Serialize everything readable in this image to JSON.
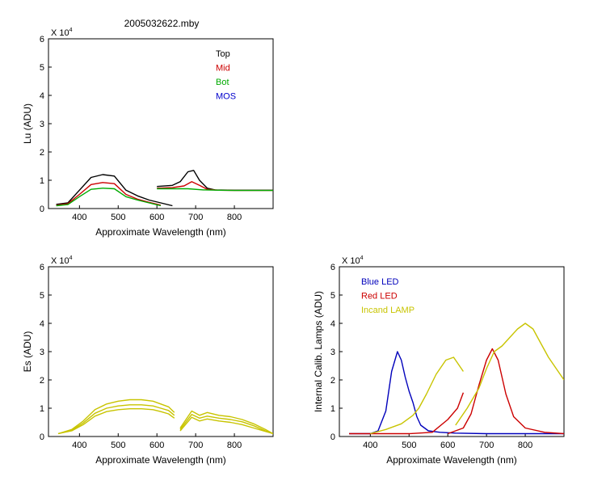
{
  "figure": {
    "title": "2005032622.mby"
  },
  "chart_data": [
    {
      "type": "line",
      "title": "",
      "xlabel": "Approximate Wavelength (nm)",
      "ylabel": "Lu (ADU)",
      "multiplier_label": "X 10",
      "multiplier_exp": "4",
      "xlim": [
        320,
        900
      ],
      "ylim": [
        0,
        6
      ],
      "xticks": [
        400,
        500,
        600,
        700,
        800
      ],
      "yticks": [
        0,
        1,
        2,
        3,
        4,
        5,
        6
      ],
      "legend": {
        "placement": "top-right",
        "entries": [
          "Top",
          "Mid",
          "Bot",
          "MOS"
        ]
      },
      "colors": {
        "Top": "#000000",
        "Mid": "#cc0000",
        "Bot": "#00aa00",
        "MOS": "#0000cc",
        "Mid_faint": "#d89090"
      },
      "series": [
        {
          "name": "Top",
          "segment": "short",
          "x": [
            340,
            370,
            400,
            430,
            460,
            490,
            520,
            550,
            580,
            610,
            640
          ],
          "y": [
            0.15,
            0.2,
            0.65,
            1.1,
            1.2,
            1.15,
            0.65,
            0.45,
            0.3,
            0.2,
            0.1
          ]
        },
        {
          "name": "Top",
          "segment": "long",
          "x": [
            600,
            640,
            660,
            680,
            695,
            710,
            730,
            750,
            800,
            900
          ],
          "y": [
            0.78,
            0.82,
            0.95,
            1.3,
            1.35,
            1.0,
            0.72,
            0.66,
            0.65,
            0.65
          ]
        },
        {
          "name": "Mid",
          "segment": "short",
          "x": [
            340,
            370,
            400,
            430,
            460,
            490,
            520,
            550,
            580,
            610
          ],
          "y": [
            0.12,
            0.17,
            0.5,
            0.85,
            0.92,
            0.88,
            0.5,
            0.33,
            0.22,
            0.12
          ]
        },
        {
          "name": "Mid",
          "segment": "long",
          "x": [
            600,
            640,
            670,
            690,
            710,
            730,
            760,
            800,
            900
          ],
          "y": [
            0.72,
            0.74,
            0.8,
            0.95,
            0.82,
            0.68,
            0.65,
            0.64,
            0.64
          ]
        },
        {
          "name": "Bot",
          "segment": "short",
          "x": [
            340,
            370,
            400,
            430,
            460,
            490,
            520,
            550,
            580,
            610
          ],
          "y": [
            0.1,
            0.14,
            0.42,
            0.68,
            0.72,
            0.7,
            0.42,
            0.3,
            0.2,
            0.1
          ]
        },
        {
          "name": "Bot",
          "segment": "long",
          "x": [
            600,
            640,
            680,
            720,
            760,
            800,
            900
          ],
          "y": [
            0.7,
            0.7,
            0.7,
            0.66,
            0.65,
            0.64,
            0.64
          ]
        }
      ]
    },
    {
      "type": "line",
      "title": "",
      "xlabel": "Approximate Wavelength (nm)",
      "ylabel": "Es (ADU)",
      "multiplier_label": "X 10",
      "multiplier_exp": "4",
      "xlim": [
        320,
        900
      ],
      "ylim": [
        0,
        6
      ],
      "xticks": [
        400,
        500,
        600,
        700,
        800
      ],
      "yticks": [
        0,
        1,
        2,
        3,
        4,
        5,
        6
      ],
      "colors": {
        "line": "#c8c400"
      },
      "series": [
        {
          "segment": "short",
          "x": [
            345,
            380,
            410,
            440,
            470,
            500,
            530,
            560,
            590,
            610,
            630,
            645
          ],
          "y": [
            0.1,
            0.25,
            0.55,
            0.95,
            1.15,
            1.25,
            1.3,
            1.3,
            1.25,
            1.15,
            1.05,
            0.85
          ]
        },
        {
          "segment": "short",
          "x": [
            345,
            380,
            410,
            440,
            470,
            500,
            530,
            560,
            590,
            610,
            630,
            645
          ],
          "y": [
            0.1,
            0.22,
            0.48,
            0.82,
            1.0,
            1.08,
            1.12,
            1.12,
            1.08,
            1.0,
            0.92,
            0.75
          ]
        },
        {
          "segment": "short",
          "x": [
            345,
            380,
            410,
            440,
            470,
            500,
            530,
            560,
            590,
            610,
            630,
            645
          ],
          "y": [
            0.1,
            0.2,
            0.42,
            0.72,
            0.88,
            0.95,
            0.98,
            0.98,
            0.95,
            0.88,
            0.8,
            0.65
          ]
        },
        {
          "segment": "long",
          "x": [
            660,
            690,
            710,
            730,
            760,
            790,
            820,
            850,
            880,
            900
          ],
          "y": [
            0.3,
            0.9,
            0.75,
            0.85,
            0.75,
            0.7,
            0.6,
            0.45,
            0.25,
            0.1
          ]
        },
        {
          "segment": "long",
          "x": [
            660,
            690,
            710,
            730,
            760,
            790,
            820,
            850,
            880,
            900
          ],
          "y": [
            0.25,
            0.78,
            0.65,
            0.72,
            0.65,
            0.6,
            0.52,
            0.38,
            0.2,
            0.1
          ]
        },
        {
          "segment": "long",
          "x": [
            660,
            690,
            710,
            730,
            760,
            790,
            820,
            850,
            880,
            900
          ],
          "y": [
            0.2,
            0.68,
            0.55,
            0.62,
            0.55,
            0.5,
            0.42,
            0.3,
            0.18,
            0.1
          ]
        }
      ]
    },
    {
      "type": "line",
      "title": "",
      "xlabel": "Approximate Wavelength (nm)",
      "ylabel": "Internal Calib. Lamps (ADU)",
      "multiplier_label": "X 10",
      "multiplier_exp": "4",
      "xlim": [
        320,
        900
      ],
      "ylim": [
        0,
        6
      ],
      "xticks": [
        400,
        500,
        600,
        700,
        800
      ],
      "yticks": [
        0,
        1,
        2,
        3,
        4,
        5,
        6
      ],
      "legend": {
        "placement": "top-left",
        "entries": [
          "Blue LED",
          "Red LED",
          "Incand LAMP"
        ]
      },
      "colors": {
        "Blue LED": "#0000bb",
        "Red LED": "#cc0000",
        "Incand LAMP": "#c8c400"
      },
      "series": [
        {
          "name": "Blue LED",
          "x": [
            345,
            400,
            420,
            440,
            455,
            470,
            480,
            490,
            500,
            510,
            520,
            530,
            550,
            580,
            620,
            700,
            800,
            900
          ],
          "y": [
            0.1,
            0.1,
            0.2,
            0.9,
            2.3,
            3.0,
            2.7,
            2.1,
            1.6,
            1.2,
            0.7,
            0.4,
            0.2,
            0.15,
            0.12,
            0.1,
            0.1,
            0.1
          ]
        },
        {
          "name": "Red LED",
          "x": [
            345,
            500,
            560,
            600,
            625,
            640
          ],
          "y": [
            0.1,
            0.1,
            0.15,
            0.6,
            1.0,
            1.55
          ]
        },
        {
          "name": "Red LED",
          "x": [
            600,
            640,
            660,
            680,
            700,
            715,
            730,
            750,
            770,
            800,
            850,
            900
          ],
          "y": [
            0.1,
            0.3,
            0.8,
            1.8,
            2.7,
            3.1,
            2.7,
            1.5,
            0.7,
            0.3,
            0.15,
            0.1
          ]
        },
        {
          "name": "Incand LAMP",
          "x": [
            400,
            440,
            480,
            510,
            525,
            545,
            570,
            595,
            615,
            630,
            640
          ],
          "y": [
            0.1,
            0.25,
            0.45,
            0.75,
            1.0,
            1.5,
            2.2,
            2.7,
            2.8,
            2.5,
            2.3
          ]
        },
        {
          "name": "Incand LAMP",
          "x": [
            620,
            650,
            680,
            700,
            720,
            740,
            760,
            780,
            800,
            820,
            840,
            860,
            880,
            900
          ],
          "y": [
            0.4,
            1.0,
            1.7,
            2.4,
            3.0,
            3.2,
            3.5,
            3.8,
            4.0,
            3.8,
            3.3,
            2.8,
            2.4,
            2.0
          ]
        }
      ]
    }
  ]
}
